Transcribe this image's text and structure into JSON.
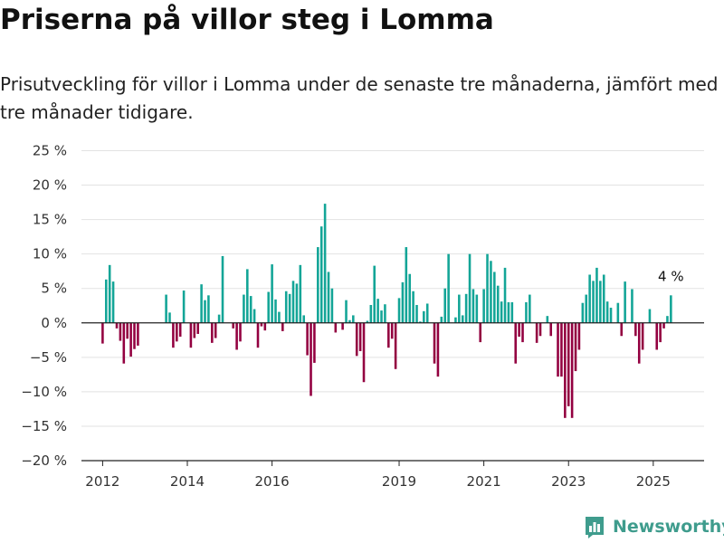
{
  "header": {
    "title": "Priserna på villor steg i Lomma",
    "subtitle": "Prisutveckling för villor i Lomma under de senaste tre månaderna, jämfört med tre månader tidigare."
  },
  "brand": {
    "name": "Newsworthy"
  },
  "colors": {
    "positive": "#13a597",
    "negative": "#930040",
    "axis": "#222222",
    "grid": "#e2e2e2",
    "brand": "#3f9c8d"
  },
  "chart_data": {
    "type": "bar",
    "ylim": [
      -20,
      25
    ],
    "yticks": [
      25,
      20,
      15,
      10,
      5,
      0,
      -5,
      -10,
      -15,
      -20
    ],
    "ytick_labels": [
      "25 %",
      "20 %",
      "15 %",
      "10 %",
      "5 %",
      "0 %",
      "−5 %",
      "−10 %",
      "−15 %",
      "−20 %"
    ],
    "xticks": [
      {
        "label": "2012",
        "year": 2012
      },
      {
        "label": "2014",
        "year": 2014
      },
      {
        "label": "2016",
        "year": 2016
      },
      {
        "label": "2019",
        "year": 2019
      },
      {
        "label": "2021",
        "year": 2021
      },
      {
        "label": "2023",
        "year": 2023
      },
      {
        "label": "2025",
        "year": 2025
      }
    ],
    "first_month": "2012-01",
    "values": [
      -3,
      6.3,
      8.4,
      6,
      -0.8,
      -2.6,
      -5.9,
      -2.3,
      -4.9,
      -3.8,
      -3.3,
      null,
      null,
      null,
      null,
      null,
      null,
      null,
      4.1,
      1.5,
      -3.6,
      -2.7,
      -2,
      4.7,
      null,
      -3.6,
      -2.2,
      -1.6,
      5.6,
      3.3,
      4,
      -2.9,
      -2.2,
      1.2,
      9.7,
      null,
      null,
      -0.8,
      -3.9,
      -2.7,
      4.1,
      7.8,
      3.9,
      2,
      -3.6,
      -0.5,
      -1.1,
      4.5,
      8.5,
      3.4,
      1.6,
      -1.2,
      4.6,
      4.2,
      6.1,
      5.7,
      8.4,
      1.1,
      -4.7,
      -10.6,
      -5.8,
      11,
      14,
      17.3,
      7.4,
      5,
      -1.4,
      null,
      -1,
      3.3,
      0.4,
      1.1,
      -4.8,
      -4.1,
      -8.6,
      0.3,
      2.6,
      8.3,
      3.5,
      1.8,
      2.7,
      -3.6,
      -2.3,
      -6.7,
      3.6,
      5.9,
      11,
      7.1,
      4.6,
      2.6,
      0.2,
      1.7,
      2.8,
      null,
      -5.9,
      -7.8,
      0.9,
      5,
      10,
      null,
      0.8,
      4.1,
      1.1,
      4.2,
      10,
      4.9,
      4.1,
      -2.8,
      4.9,
      10,
      9,
      7.4,
      5.4,
      3.1,
      8,
      3,
      3,
      -5.9,
      -2,
      -2.8,
      3,
      4.1,
      null,
      -2.9,
      -1.9,
      null,
      1,
      -1.9,
      null,
      -7.8,
      -7.8,
      -13.8,
      -12.1,
      -13.8,
      -7,
      -3.9,
      2.9,
      4.1,
      7,
      6.1,
      8,
      6.1,
      7,
      3.1,
      2.2,
      null,
      2.9,
      -1.9,
      6,
      null,
      4.9,
      -1.9,
      -5.9,
      -3.9,
      null,
      2,
      null,
      -3.9,
      -2.8,
      -0.8,
      1,
      4
    ],
    "annotation": {
      "text": "4 %",
      "value": 4,
      "year": 2025
    }
  }
}
